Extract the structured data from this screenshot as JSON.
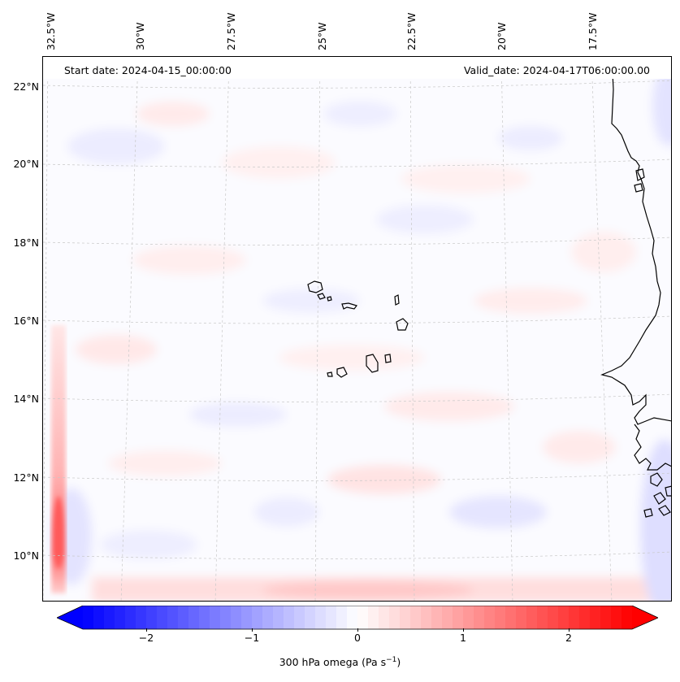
{
  "map": {
    "start_date": "Start date: 2024-04-15_00:00:00",
    "valid_date": "Valid_date: 2024-04-17T06:00:00.00",
    "lon_labels": [
      "32.5°W",
      "30°W",
      "27.5°W",
      "25°W",
      "22.5°W",
      "20°W",
      "17.5°W"
    ],
    "lat_labels": [
      "22°N",
      "20°N",
      "18°N",
      "16°N",
      "14°N",
      "12°N",
      "10°N"
    ],
    "colors": {
      "negative": "#0000ff",
      "zero": "#ffffff",
      "positive": "#ff0000",
      "coastline": "#000000",
      "gridline": "#c8c8c8"
    }
  },
  "colorbar": {
    "ticks": [
      "−2",
      "−1",
      "0",
      "1",
      "2"
    ],
    "tick_values": [
      -2,
      -1,
      0,
      1,
      2
    ],
    "range": [
      -2.6,
      2.6
    ],
    "label_main": "300 hPa omega (Pa s",
    "label_sup": "−1",
    "label_end": ")"
  }
}
